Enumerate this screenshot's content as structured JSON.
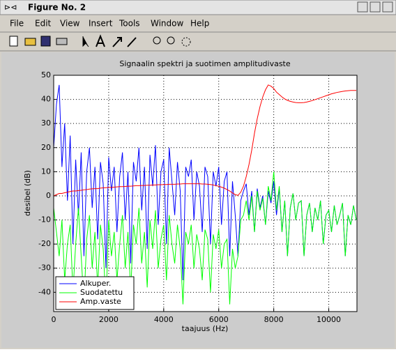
{
  "window": {
    "title": "Figure No. 2",
    "menu": [
      "File",
      "Edit",
      "View",
      "Insert",
      "Tools",
      "Window",
      "Help"
    ]
  },
  "chart_data": {
    "type": "line",
    "title": "Signaalin spektri ja suotimen amplitudivaste",
    "x_label": "taajuus (Hz)",
    "y_label": "desibel (dB)",
    "xlim": [
      0,
      11025
    ],
    "ylim": [
      -48,
      50
    ],
    "xticks": [
      0,
      2000,
      4000,
      6000,
      8000,
      10000
    ],
    "yticks": [
      -40,
      -30,
      -20,
      -10,
      0,
      10,
      20,
      30,
      40,
      50
    ],
    "grid": true,
    "legend": "lower left",
    "x": [
      0,
      100,
      200,
      300,
      400,
      500,
      600,
      700,
      800,
      900,
      1000,
      1100,
      1200,
      1300,
      1400,
      1500,
      1600,
      1700,
      1800,
      1900,
      2000,
      2100,
      2200,
      2300,
      2400,
      2500,
      2600,
      2700,
      2800,
      2900,
      3000,
      3100,
      3200,
      3300,
      3400,
      3500,
      3600,
      3700,
      3800,
      3900,
      4000,
      4100,
      4200,
      4300,
      4400,
      4500,
      4600,
      4700,
      4800,
      4900,
      5000,
      5100,
      5200,
      5300,
      5400,
      5500,
      5600,
      5700,
      5800,
      5900,
      6000,
      6100,
      6200,
      6300,
      6400,
      6500,
      6600,
      6700,
      6800,
      6900,
      7000,
      7100,
      7200,
      7300,
      7400,
      7500,
      7600,
      7700,
      7800,
      7900,
      8000,
      8100,
      8200,
      8300,
      8400,
      8500,
      8600,
      8700,
      8800,
      8900,
      9000,
      9100,
      9200,
      9300,
      9400,
      9500,
      9600,
      9700,
      9800,
      9900,
      10000,
      10100,
      10200,
      10300,
      10400,
      10500,
      10600,
      10700,
      10800,
      10900,
      11000
    ],
    "series": [
      {
        "name": "Alkuper.",
        "color": "#0000ff",
        "values": [
          20,
          38,
          46,
          12,
          30,
          -2,
          25,
          -20,
          15,
          -8,
          18,
          -25,
          10,
          20,
          -5,
          12,
          -18,
          14,
          5,
          -30,
          16,
          2,
          12,
          -15,
          8,
          18,
          -10,
          10,
          -28,
          14,
          6,
          20,
          -6,
          12,
          -22,
          17,
          4,
          21,
          -12,
          10,
          15,
          -20,
          20,
          6,
          -8,
          14,
          2,
          -35,
          12,
          8,
          15,
          -10,
          10,
          4,
          -15,
          12,
          8,
          -20,
          10,
          4,
          12,
          -12,
          6,
          10,
          -25,
          6,
          -8,
          -25,
          -2,
          2,
          5,
          -8,
          2,
          -15,
          3,
          -5,
          0,
          -12,
          2,
          -3,
          6,
          -8,
          3,
          -15,
          -2,
          -25,
          -5,
          1,
          -10,
          -3,
          -2,
          -25,
          -8,
          -3,
          -15,
          -5,
          -10,
          -2,
          -20,
          -8,
          -6,
          -15,
          -4,
          -12,
          -8,
          -3,
          -25,
          -8,
          -12,
          -4,
          -10
        ]
      },
      {
        "name": "Suodatettu",
        "color": "#00ff00",
        "values": [
          -5,
          -15,
          -25,
          -10,
          -35,
          -20,
          -12,
          -40,
          -20,
          -5,
          -25,
          -45,
          -18,
          -8,
          -30,
          -15,
          -38,
          -12,
          -22,
          -45,
          -10,
          -25,
          -15,
          -35,
          -20,
          -8,
          -30,
          -15,
          -40,
          -12,
          -20,
          -5,
          -28,
          -15,
          -38,
          -10,
          -22,
          -6,
          -30,
          -18,
          -12,
          -35,
          -8,
          -20,
          -28,
          -12,
          -22,
          -45,
          -15,
          -20,
          -12,
          -30,
          -16,
          -22,
          -35,
          -14,
          -18,
          -40,
          -16,
          -22,
          -14,
          -30,
          -20,
          -18,
          -45,
          -22,
          -30,
          -25,
          -10,
          -8,
          -2,
          -10,
          0,
          -15,
          2,
          -6,
          -1,
          -12,
          4,
          -2,
          10,
          -6,
          4,
          -15,
          -2,
          -25,
          -5,
          1,
          -10,
          -3,
          -2,
          -25,
          -8,
          -3,
          -15,
          -5,
          -10,
          -2,
          -20,
          -8,
          -6,
          -15,
          -4,
          -12,
          -8,
          -3,
          -25,
          -8,
          -12,
          -4,
          -10
        ]
      },
      {
        "name": "Amp.vaste",
        "color": "#ff0000",
        "values": [
          0,
          0.5,
          1,
          1,
          1.3,
          1.5,
          1.8,
          2,
          2,
          2.2,
          2.3,
          2.5,
          2.6,
          2.8,
          2.9,
          3,
          3,
          3.2,
          3.3,
          3.4,
          3.5,
          3.5,
          3.6,
          3.7,
          3.8,
          3.8,
          3.9,
          4,
          4,
          4.1,
          4.2,
          4.2,
          4.3,
          4.3,
          4.4,
          4.4,
          4.5,
          4.5,
          4.6,
          4.6,
          4.7,
          4.7,
          4.8,
          4.8,
          4.8,
          4.9,
          4.9,
          5,
          5,
          5,
          5,
          5,
          5,
          5,
          4.9,
          4.9,
          4.8,
          4.7,
          4.5,
          4.2,
          4,
          3.6,
          3.2,
          2.6,
          2,
          1.2,
          0.5,
          0.2,
          1.5,
          4,
          8,
          13,
          19,
          26,
          32,
          37,
          41,
          44,
          46,
          45.5,
          44.5,
          43,
          42,
          41,
          40.2,
          39.6,
          39.2,
          38.9,
          38.7,
          38.6,
          38.6,
          38.7,
          38.9,
          39.2,
          39.5,
          39.9,
          40.3,
          40.7,
          41.1,
          41.5,
          41.9,
          42.3,
          42.6,
          42.9,
          43.1,
          43.3,
          43.5,
          43.6,
          43.7,
          43.7,
          43.7
        ]
      }
    ]
  }
}
